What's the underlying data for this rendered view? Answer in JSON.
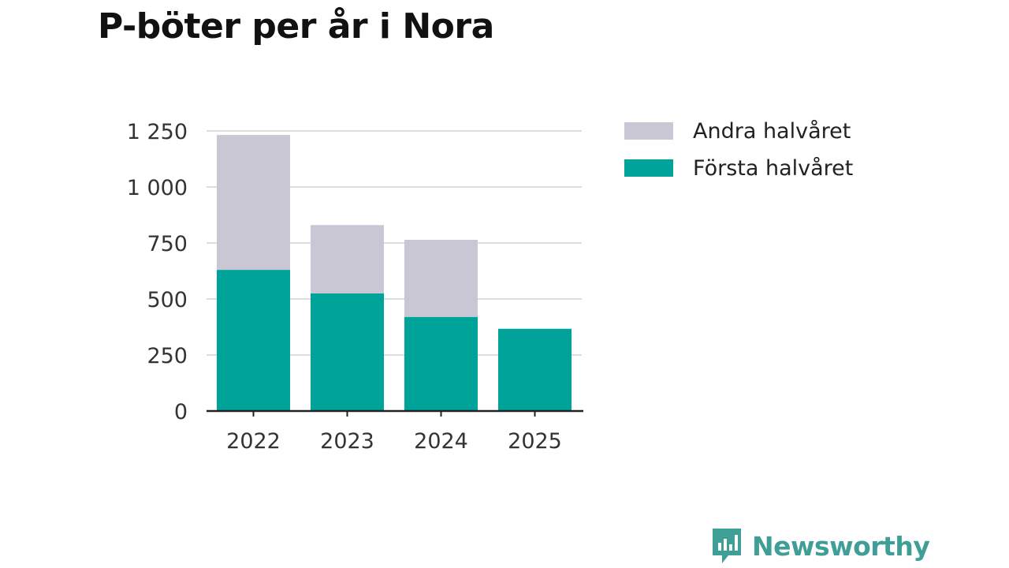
{
  "chart_data": {
    "type": "bar",
    "stacked": true,
    "title": "P-böter per år i Nora",
    "categories": [
      "2022",
      "2023",
      "2024",
      "2025"
    ],
    "series": [
      {
        "name": "Första halvåret",
        "color": "#00a39a",
        "values": [
          630,
          525,
          420,
          367
        ]
      },
      {
        "name": "Andra halvåret",
        "color": "#c8c7d3",
        "values": [
          602,
          305,
          344,
          0
        ]
      }
    ],
    "legend_order": [
      "Andra halvåret",
      "Första halvåret"
    ],
    "ylim": [
      0,
      1250
    ],
    "yticks": [
      0,
      250,
      500,
      750,
      1000,
      1250
    ],
    "ytick_labels": [
      "0",
      "250",
      "500",
      "750",
      "1 000",
      "1 250"
    ],
    "grid": true,
    "legend_position": "right",
    "xlabel": "",
    "ylabel": ""
  },
  "brand": {
    "name": "Newsworthy",
    "color": "#3f9e96"
  }
}
